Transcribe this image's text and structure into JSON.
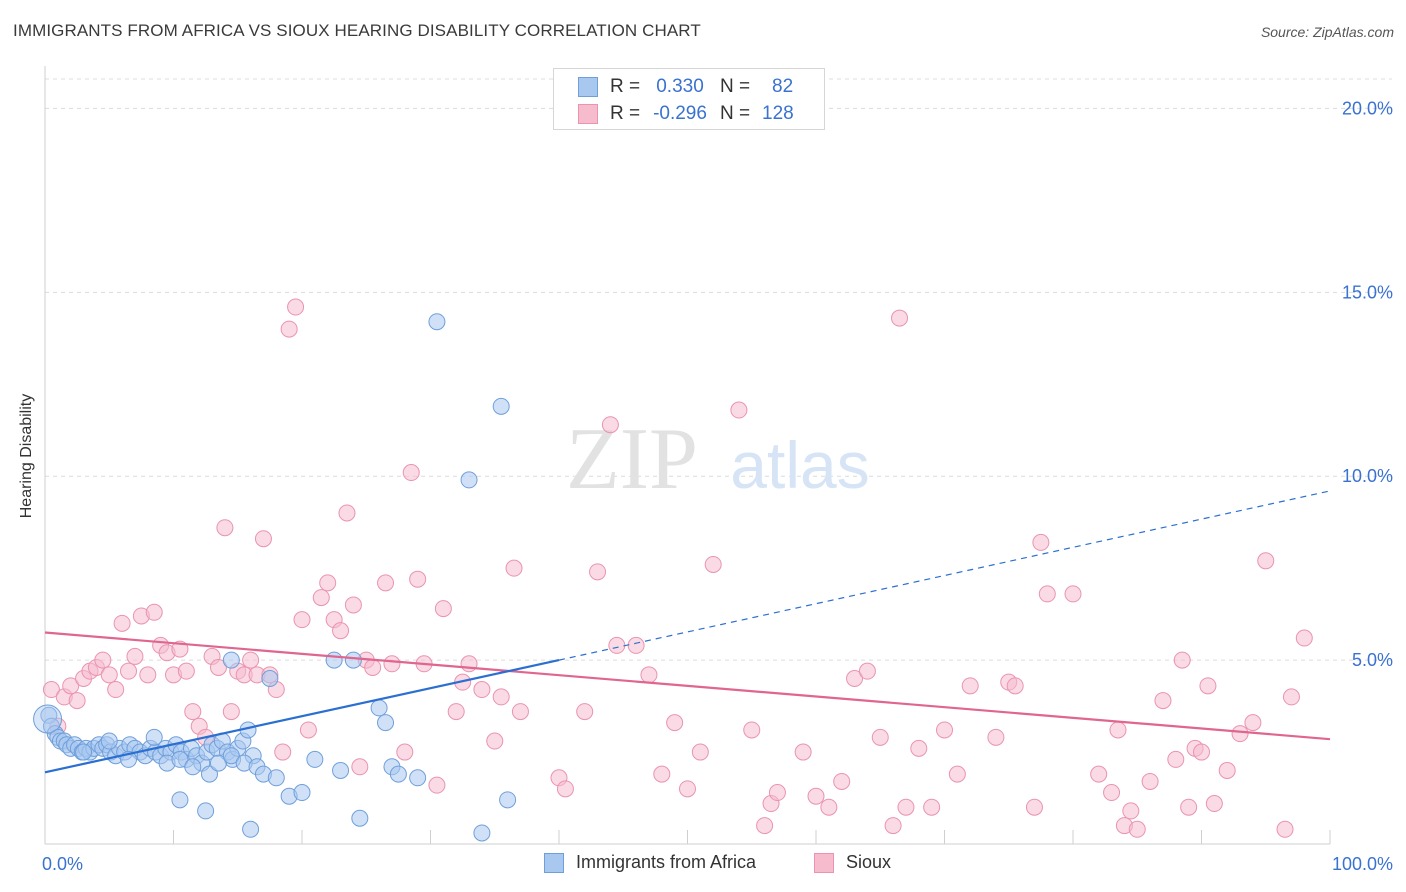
{
  "header": {
    "title": "IMMIGRANTS FROM AFRICA VS SIOUX HEARING DISABILITY CORRELATION CHART",
    "source": "Source: ZipAtlas.com"
  },
  "watermark": {
    "zip": "ZIP",
    "atlas": "atlas"
  },
  "legend": {
    "series": [
      {
        "r_label": "R =",
        "r_value": "0.330",
        "n_label": "N =",
        "n_value": "82"
      },
      {
        "r_label": "R =",
        "r_value": "-0.296",
        "n_label": "N =",
        "n_value": "128"
      }
    ]
  },
  "colors": {
    "africa_fill": "#a9c8f0",
    "africa_stroke": "#6f9fdb",
    "africa_line": "#2a6fd1",
    "sioux_fill": "#f6bccd",
    "sioux_stroke": "#ea94af",
    "sioux_line": "#e0658f",
    "tick_label": "#3a72d0",
    "grid": "#dcdcdc"
  },
  "chart_data": {
    "type": "scatter",
    "title": "IMMIGRANTS FROM AFRICA VS SIOUX HEARING DISABILITY CORRELATION CHART",
    "xlabel": "",
    "ylabel": "Hearing Disability",
    "xlim": [
      0,
      100
    ],
    "ylim": [
      0,
      20.8
    ],
    "x_tick_labels": [
      "0.0%",
      "100.0%"
    ],
    "y_ticks": [
      5,
      10,
      15,
      20
    ],
    "y_tick_labels": [
      "5.0%",
      "10.0%",
      "15.0%",
      "20.0%"
    ],
    "grid": true,
    "legend_position": "top-center",
    "series": [
      {
        "name": "Immigrants from Africa",
        "r": 0.33,
        "n": 82,
        "trend": {
          "x0": 0,
          "y0": 1.95,
          "x1": 40,
          "y1": 5.0,
          "dashed_to_x": 100,
          "dashed_to_y": 9.6
        },
        "points": [
          [
            0.3,
            3.5
          ],
          [
            0.5,
            3.2
          ],
          [
            0.8,
            3.0
          ],
          [
            1.0,
            2.9
          ],
          [
            1.2,
            2.8
          ],
          [
            1.5,
            2.8
          ],
          [
            1.7,
            2.7
          ],
          [
            2.0,
            2.6
          ],
          [
            2.3,
            2.7
          ],
          [
            2.6,
            2.6
          ],
          [
            2.9,
            2.5
          ],
          [
            3.2,
            2.6
          ],
          [
            3.5,
            2.5
          ],
          [
            3.8,
            2.6
          ],
          [
            4.2,
            2.7
          ],
          [
            4.5,
            2.6
          ],
          [
            4.8,
            2.7
          ],
          [
            5.1,
            2.5
          ],
          [
            5.5,
            2.4
          ],
          [
            5.8,
            2.6
          ],
          [
            6.2,
            2.5
          ],
          [
            6.6,
            2.7
          ],
          [
            7.0,
            2.6
          ],
          [
            7.4,
            2.5
          ],
          [
            7.8,
            2.4
          ],
          [
            8.2,
            2.6
          ],
          [
            8.6,
            2.5
          ],
          [
            9.0,
            2.4
          ],
          [
            9.4,
            2.6
          ],
          [
            9.8,
            2.5
          ],
          [
            10.2,
            2.7
          ],
          [
            10.6,
            2.5
          ],
          [
            11.0,
            2.3
          ],
          [
            11.4,
            2.6
          ],
          [
            11.8,
            2.4
          ],
          [
            12.2,
            2.2
          ],
          [
            12.6,
            2.5
          ],
          [
            13.0,
            2.7
          ],
          [
            13.4,
            2.6
          ],
          [
            13.8,
            2.8
          ],
          [
            14.2,
            2.5
          ],
          [
            14.6,
            2.3
          ],
          [
            15.0,
            2.6
          ],
          [
            15.4,
            2.8
          ],
          [
            15.8,
            3.1
          ],
          [
            16.2,
            2.4
          ],
          [
            3.0,
            2.5
          ],
          [
            5.0,
            2.8
          ],
          [
            6.5,
            2.3
          ],
          [
            8.5,
            2.9
          ],
          [
            9.5,
            2.2
          ],
          [
            10.5,
            2.3
          ],
          [
            11.5,
            2.1
          ],
          [
            12.8,
            1.9
          ],
          [
            13.5,
            2.2
          ],
          [
            14.5,
            2.4
          ],
          [
            15.5,
            2.2
          ],
          [
            16.5,
            2.1
          ],
          [
            17.0,
            1.9
          ],
          [
            18.0,
            1.8
          ],
          [
            17.5,
            4.5
          ],
          [
            19.0,
            1.3
          ],
          [
            20.0,
            1.4
          ],
          [
            21.0,
            2.3
          ],
          [
            23.0,
            2.0
          ],
          [
            22.5,
            5.0
          ],
          [
            24.0,
            5.0
          ],
          [
            26.0,
            3.7
          ],
          [
            26.5,
            3.3
          ],
          [
            27.0,
            2.1
          ],
          [
            27.5,
            1.9
          ],
          [
            29.0,
            1.8
          ],
          [
            30.5,
            14.2
          ],
          [
            33.0,
            9.9
          ],
          [
            35.5,
            11.9
          ],
          [
            36.0,
            1.2
          ],
          [
            34.0,
            0.3
          ],
          [
            24.5,
            0.7
          ],
          [
            16.0,
            0.4
          ],
          [
            12.5,
            0.9
          ],
          [
            10.5,
            1.2
          ],
          [
            14.5,
            5.0
          ]
        ]
      },
      {
        "name": "Sioux",
        "r": -0.296,
        "n": 128,
        "trend": {
          "x0": 0,
          "y0": 5.75,
          "x1": 100,
          "y1": 2.85
        },
        "points": [
          [
            0.5,
            4.2
          ],
          [
            1.0,
            3.2
          ],
          [
            1.5,
            4.0
          ],
          [
            2.0,
            4.3
          ],
          [
            2.5,
            3.9
          ],
          [
            3.0,
            4.5
          ],
          [
            3.5,
            4.7
          ],
          [
            4.0,
            4.8
          ],
          [
            4.5,
            5.0
          ],
          [
            5.0,
            4.6
          ],
          [
            5.5,
            4.2
          ],
          [
            6.0,
            6.0
          ],
          [
            6.5,
            4.7
          ],
          [
            7.0,
            5.1
          ],
          [
            7.5,
            6.2
          ],
          [
            8.0,
            4.6
          ],
          [
            8.5,
            6.3
          ],
          [
            9.0,
            5.4
          ],
          [
            9.5,
            5.2
          ],
          [
            10.0,
            4.6
          ],
          [
            10.5,
            5.3
          ],
          [
            11.0,
            4.7
          ],
          [
            11.5,
            3.6
          ],
          [
            12.0,
            3.2
          ],
          [
            12.5,
            2.9
          ],
          [
            13.0,
            5.1
          ],
          [
            13.5,
            4.8
          ],
          [
            14.0,
            8.6
          ],
          [
            14.5,
            3.6
          ],
          [
            15.0,
            4.7
          ],
          [
            15.5,
            4.6
          ],
          [
            16.0,
            5.0
          ],
          [
            16.5,
            4.6
          ],
          [
            17.0,
            8.3
          ],
          [
            17.5,
            4.6
          ],
          [
            18.0,
            4.2
          ],
          [
            18.5,
            2.5
          ],
          [
            19.0,
            14.0
          ],
          [
            19.5,
            14.6
          ],
          [
            20.0,
            6.1
          ],
          [
            20.5,
            3.1
          ],
          [
            21.5,
            6.7
          ],
          [
            22.0,
            7.1
          ],
          [
            22.5,
            6.1
          ],
          [
            23.0,
            5.8
          ],
          [
            23.5,
            9.0
          ],
          [
            24.0,
            6.5
          ],
          [
            24.5,
            2.1
          ],
          [
            25.0,
            5.0
          ],
          [
            25.5,
            4.8
          ],
          [
            26.5,
            7.1
          ],
          [
            27.0,
            4.9
          ],
          [
            28.0,
            2.5
          ],
          [
            28.5,
            10.1
          ],
          [
            29.0,
            7.2
          ],
          [
            29.5,
            4.9
          ],
          [
            30.5,
            1.6
          ],
          [
            31.0,
            6.4
          ],
          [
            32.0,
            3.6
          ],
          [
            32.5,
            4.4
          ],
          [
            33.0,
            4.9
          ],
          [
            34.0,
            4.2
          ],
          [
            35.0,
            2.8
          ],
          [
            35.5,
            4.0
          ],
          [
            36.5,
            7.5
          ],
          [
            37.0,
            3.6
          ],
          [
            40.0,
            1.8
          ],
          [
            40.5,
            1.5
          ],
          [
            42.0,
            3.6
          ],
          [
            43.0,
            7.4
          ],
          [
            44.0,
            11.4
          ],
          [
            44.5,
            5.4
          ],
          [
            46.0,
            5.4
          ],
          [
            47.0,
            4.6
          ],
          [
            48.0,
            1.9
          ],
          [
            49.0,
            3.3
          ],
          [
            50.0,
            1.5
          ],
          [
            51.0,
            2.5
          ],
          [
            52.0,
            7.6
          ],
          [
            54.0,
            11.8
          ],
          [
            55.0,
            3.1
          ],
          [
            56.0,
            0.5
          ],
          [
            56.5,
            1.1
          ],
          [
            57.0,
            1.4
          ],
          [
            59.0,
            2.5
          ],
          [
            60.0,
            1.3
          ],
          [
            61.0,
            1.0
          ],
          [
            62.0,
            1.7
          ],
          [
            63.0,
            4.5
          ],
          [
            64.0,
            4.7
          ],
          [
            65.0,
            2.9
          ],
          [
            66.0,
            0.5
          ],
          [
            66.5,
            14.3
          ],
          [
            67.0,
            1.0
          ],
          [
            68.0,
            2.6
          ],
          [
            69.0,
            1.0
          ],
          [
            70.0,
            3.1
          ],
          [
            71.0,
            1.9
          ],
          [
            72.0,
            4.3
          ],
          [
            74.0,
            2.9
          ],
          [
            75.0,
            4.4
          ],
          [
            75.5,
            4.3
          ],
          [
            77.0,
            1.0
          ],
          [
            77.5,
            8.2
          ],
          [
            78.0,
            6.8
          ],
          [
            80.0,
            6.8
          ],
          [
            82.0,
            1.9
          ],
          [
            83.0,
            1.4
          ],
          [
            83.5,
            3.1
          ],
          [
            84.0,
            0.5
          ],
          [
            84.5,
            0.9
          ],
          [
            85.0,
            0.4
          ],
          [
            86.0,
            1.7
          ],
          [
            87.0,
            3.9
          ],
          [
            88.0,
            2.3
          ],
          [
            88.5,
            5.0
          ],
          [
            89.0,
            1.0
          ],
          [
            89.5,
            2.6
          ],
          [
            90.0,
            2.5
          ],
          [
            90.5,
            4.3
          ],
          [
            91.0,
            1.1
          ],
          [
            92.0,
            2.0
          ],
          [
            93.0,
            3.0
          ],
          [
            94.0,
            3.3
          ],
          [
            95.0,
            7.7
          ],
          [
            96.5,
            0.4
          ],
          [
            97.0,
            4.0
          ],
          [
            98.0,
            5.6
          ]
        ]
      }
    ],
    "bottom_legend": [
      "Immigrants from Africa",
      "Sioux"
    ]
  }
}
